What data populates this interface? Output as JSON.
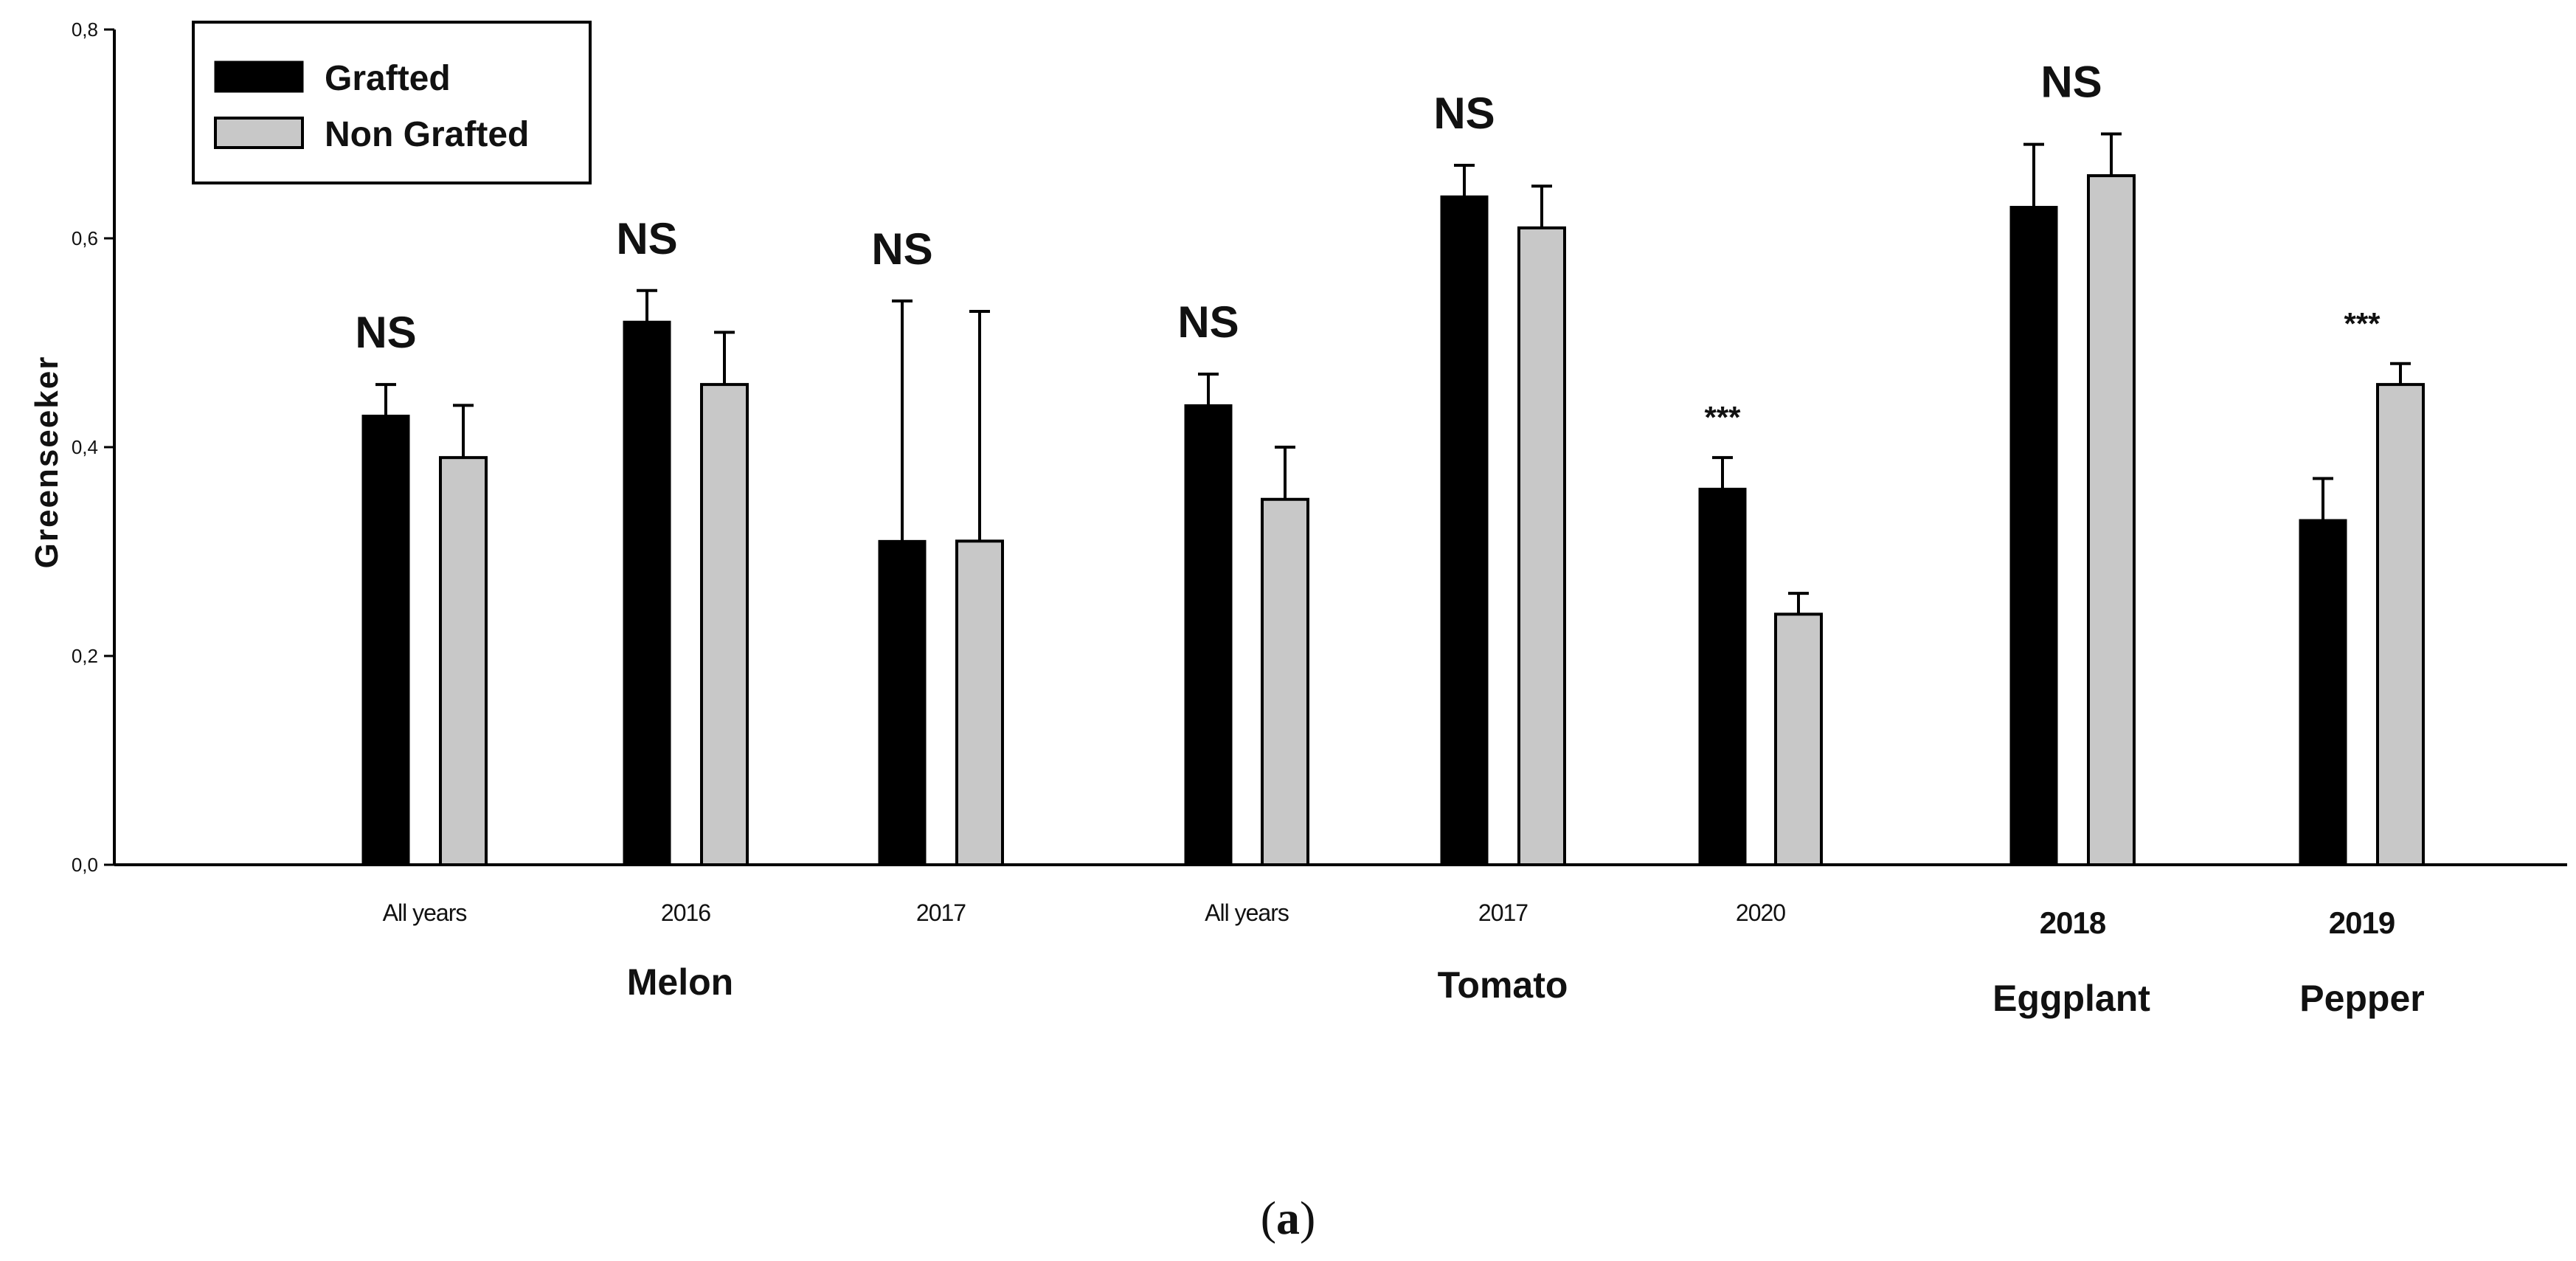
{
  "chart_data": {
    "type": "bar",
    "title": "",
    "ylabel": "Greenseeker",
    "xlabel": "",
    "ylim": [
      0,
      0.8
    ],
    "yticks": [
      "0,0",
      "0,2",
      "0,4",
      "0,6",
      "0,8"
    ],
    "ytick_values": [
      0,
      0.2,
      0.4,
      0.6,
      0.8
    ],
    "series": [
      {
        "name": "Grafted",
        "color": "#000000"
      },
      {
        "name": "Non Grafted",
        "color": "#c8c8c8"
      }
    ],
    "groups": [
      {
        "label": "Melon",
        "categories": [
          {
            "label": "All years",
            "grafted": 0.43,
            "grafted_err": 0.03,
            "non_grafted": 0.39,
            "non_grafted_err": 0.05,
            "significance": "NS"
          },
          {
            "label": "2016",
            "grafted": 0.52,
            "grafted_err": 0.03,
            "non_grafted": 0.46,
            "non_grafted_err": 0.05,
            "significance": "NS"
          },
          {
            "label": "2017",
            "grafted": 0.31,
            "grafted_err": 0.23,
            "non_grafted": 0.31,
            "non_grafted_err": 0.22,
            "significance": "NS"
          }
        ]
      },
      {
        "label": "Tomato",
        "categories": [
          {
            "label": "All years",
            "grafted": 0.44,
            "grafted_err": 0.03,
            "non_grafted": 0.35,
            "non_grafted_err": 0.05,
            "significance": "NS"
          },
          {
            "label": "2017",
            "grafted": 0.64,
            "grafted_err": 0.03,
            "non_grafted": 0.61,
            "non_grafted_err": 0.04,
            "significance": "NS"
          },
          {
            "label": "2020",
            "grafted": 0.36,
            "grafted_err": 0.03,
            "non_grafted": 0.24,
            "non_grafted_err": 0.02,
            "significance": "***"
          }
        ]
      },
      {
        "label": "Eggplant",
        "categories": [
          {
            "label": "2018",
            "grafted": 0.63,
            "grafted_err": 0.06,
            "non_grafted": 0.66,
            "non_grafted_err": 0.04,
            "significance": "NS"
          }
        ]
      },
      {
        "label": "Pepper",
        "categories": [
          {
            "label": "2019",
            "grafted": 0.33,
            "grafted_err": 0.04,
            "non_grafted": 0.46,
            "non_grafted_err": 0.02,
            "significance": "***"
          }
        ]
      }
    ],
    "legend": [
      "Grafted",
      "Non Grafted"
    ],
    "legend_position": "top-left",
    "grid": false
  },
  "caption": {
    "open": "(",
    "letter": "a",
    "close": ")"
  }
}
